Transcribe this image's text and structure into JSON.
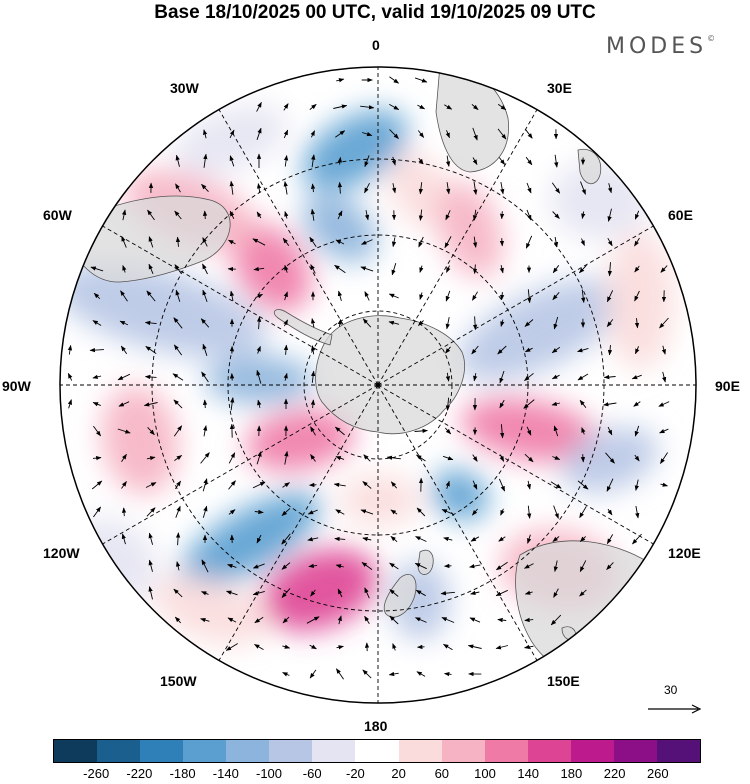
{
  "header": {
    "title": "Base 18/10/2025 00 UTC, valid 19/10/2025 09 UTC",
    "brand": "MODES",
    "brand_mark": "©"
  },
  "map": {
    "projection": "south-polar stereographic",
    "longitude_labels": {
      "top": "0",
      "top_right": "30E",
      "right_upper": "60E",
      "right": "90E",
      "right_lower": "120E",
      "bottom_right": "150E",
      "bottom": "180",
      "bottom_left": "150W",
      "left_lower": "120W",
      "left": "90W",
      "left_upper": "60W",
      "top_left": "30W"
    }
  },
  "vector_scale": {
    "label": "30"
  },
  "colorbar": {
    "colors": [
      "#0e3a5c",
      "#1b5f8f",
      "#2f7fb8",
      "#5a9fd0",
      "#8cb4dc",
      "#b8c6e6",
      "#e4e4f2",
      "#ffffff",
      "#fbdcdc",
      "#f6b3c3",
      "#ef7aa6",
      "#de4494",
      "#bd1a8d",
      "#8c0f88",
      "#561178"
    ],
    "ticks": [
      "-260",
      "-220",
      "-180",
      "-140",
      "-100",
      "-60",
      "-20",
      "20",
      "60",
      "100",
      "140",
      "180",
      "220",
      "260"
    ]
  },
  "colors": {
    "land": "#e7e7e7",
    "coast": "#555555",
    "grid": "#000000"
  }
}
